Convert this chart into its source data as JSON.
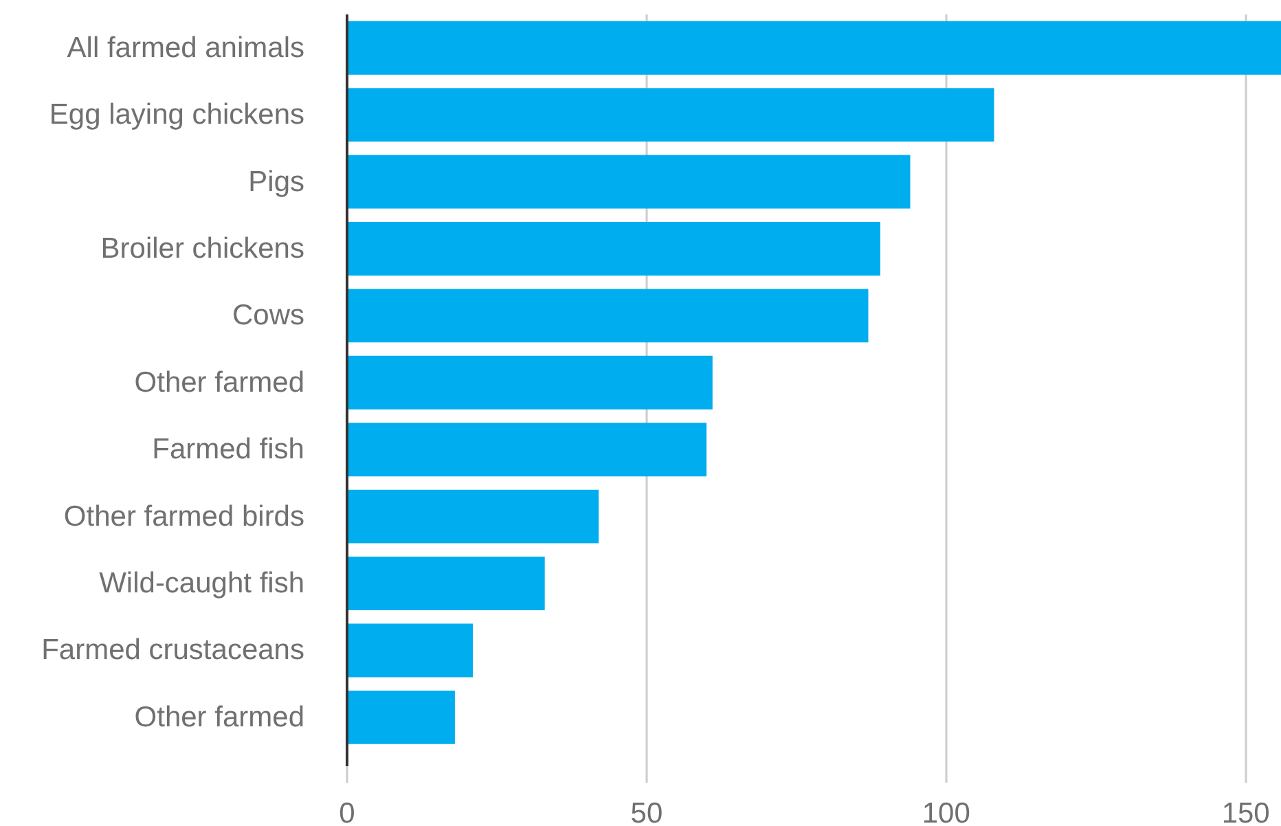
{
  "chart_data": {
    "type": "bar",
    "orientation": "horizontal",
    "categories": [
      "All farmed animals",
      "Egg laying chickens",
      "Pigs",
      "Broiler chickens",
      "Cows",
      "Other farmed",
      "Farmed fish",
      "Other farmed birds",
      "Wild-caught fish",
      "Farmed crustaceans",
      "Other farmed"
    ],
    "values": [
      156,
      108,
      94,
      89,
      87,
      61,
      60,
      42,
      33,
      21,
      18
    ],
    "color": "#00adef",
    "xlim": [
      0,
      156
    ],
    "xticks": [
      0,
      50,
      100,
      150
    ],
    "grid": "x"
  }
}
